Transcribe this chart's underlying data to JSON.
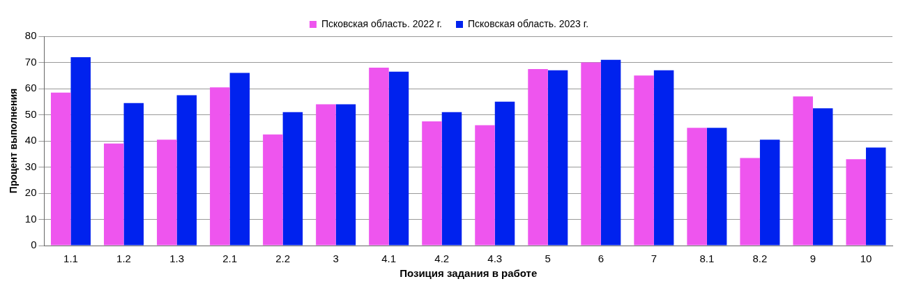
{
  "chart_data": {
    "type": "bar",
    "xlabel": "Позиция задания в работе",
    "ylabel": "Процент выполнения",
    "categories": [
      "1.1",
      "1.2",
      "1.3",
      "2.1",
      "2.2",
      "3",
      "4.1",
      "4.2",
      "4.3",
      "5",
      "6",
      "7",
      "8.1",
      "8.2",
      "9",
      "10"
    ],
    "series": [
      {
        "name": "Псковская область. 2022 г.",
        "color": "#ee55ee",
        "values": [
          58.5,
          39,
          40.5,
          60.5,
          42.5,
          54,
          68,
          47.5,
          46,
          67.5,
          70,
          65,
          45,
          33.5,
          57,
          33
        ]
      },
      {
        "name": "Псковская область. 2023 г.",
        "color": "#0022ee",
        "values": [
          72,
          54.5,
          57.5,
          66,
          51,
          54,
          66.5,
          51,
          55,
          67,
          71,
          67,
          45,
          40.5,
          52.5,
          37.5
        ]
      }
    ],
    "ylim": [
      0,
      80
    ],
    "yticks": [
      0,
      10,
      20,
      30,
      40,
      50,
      60,
      70,
      80
    ],
    "grid": "y",
    "legend": "top"
  }
}
